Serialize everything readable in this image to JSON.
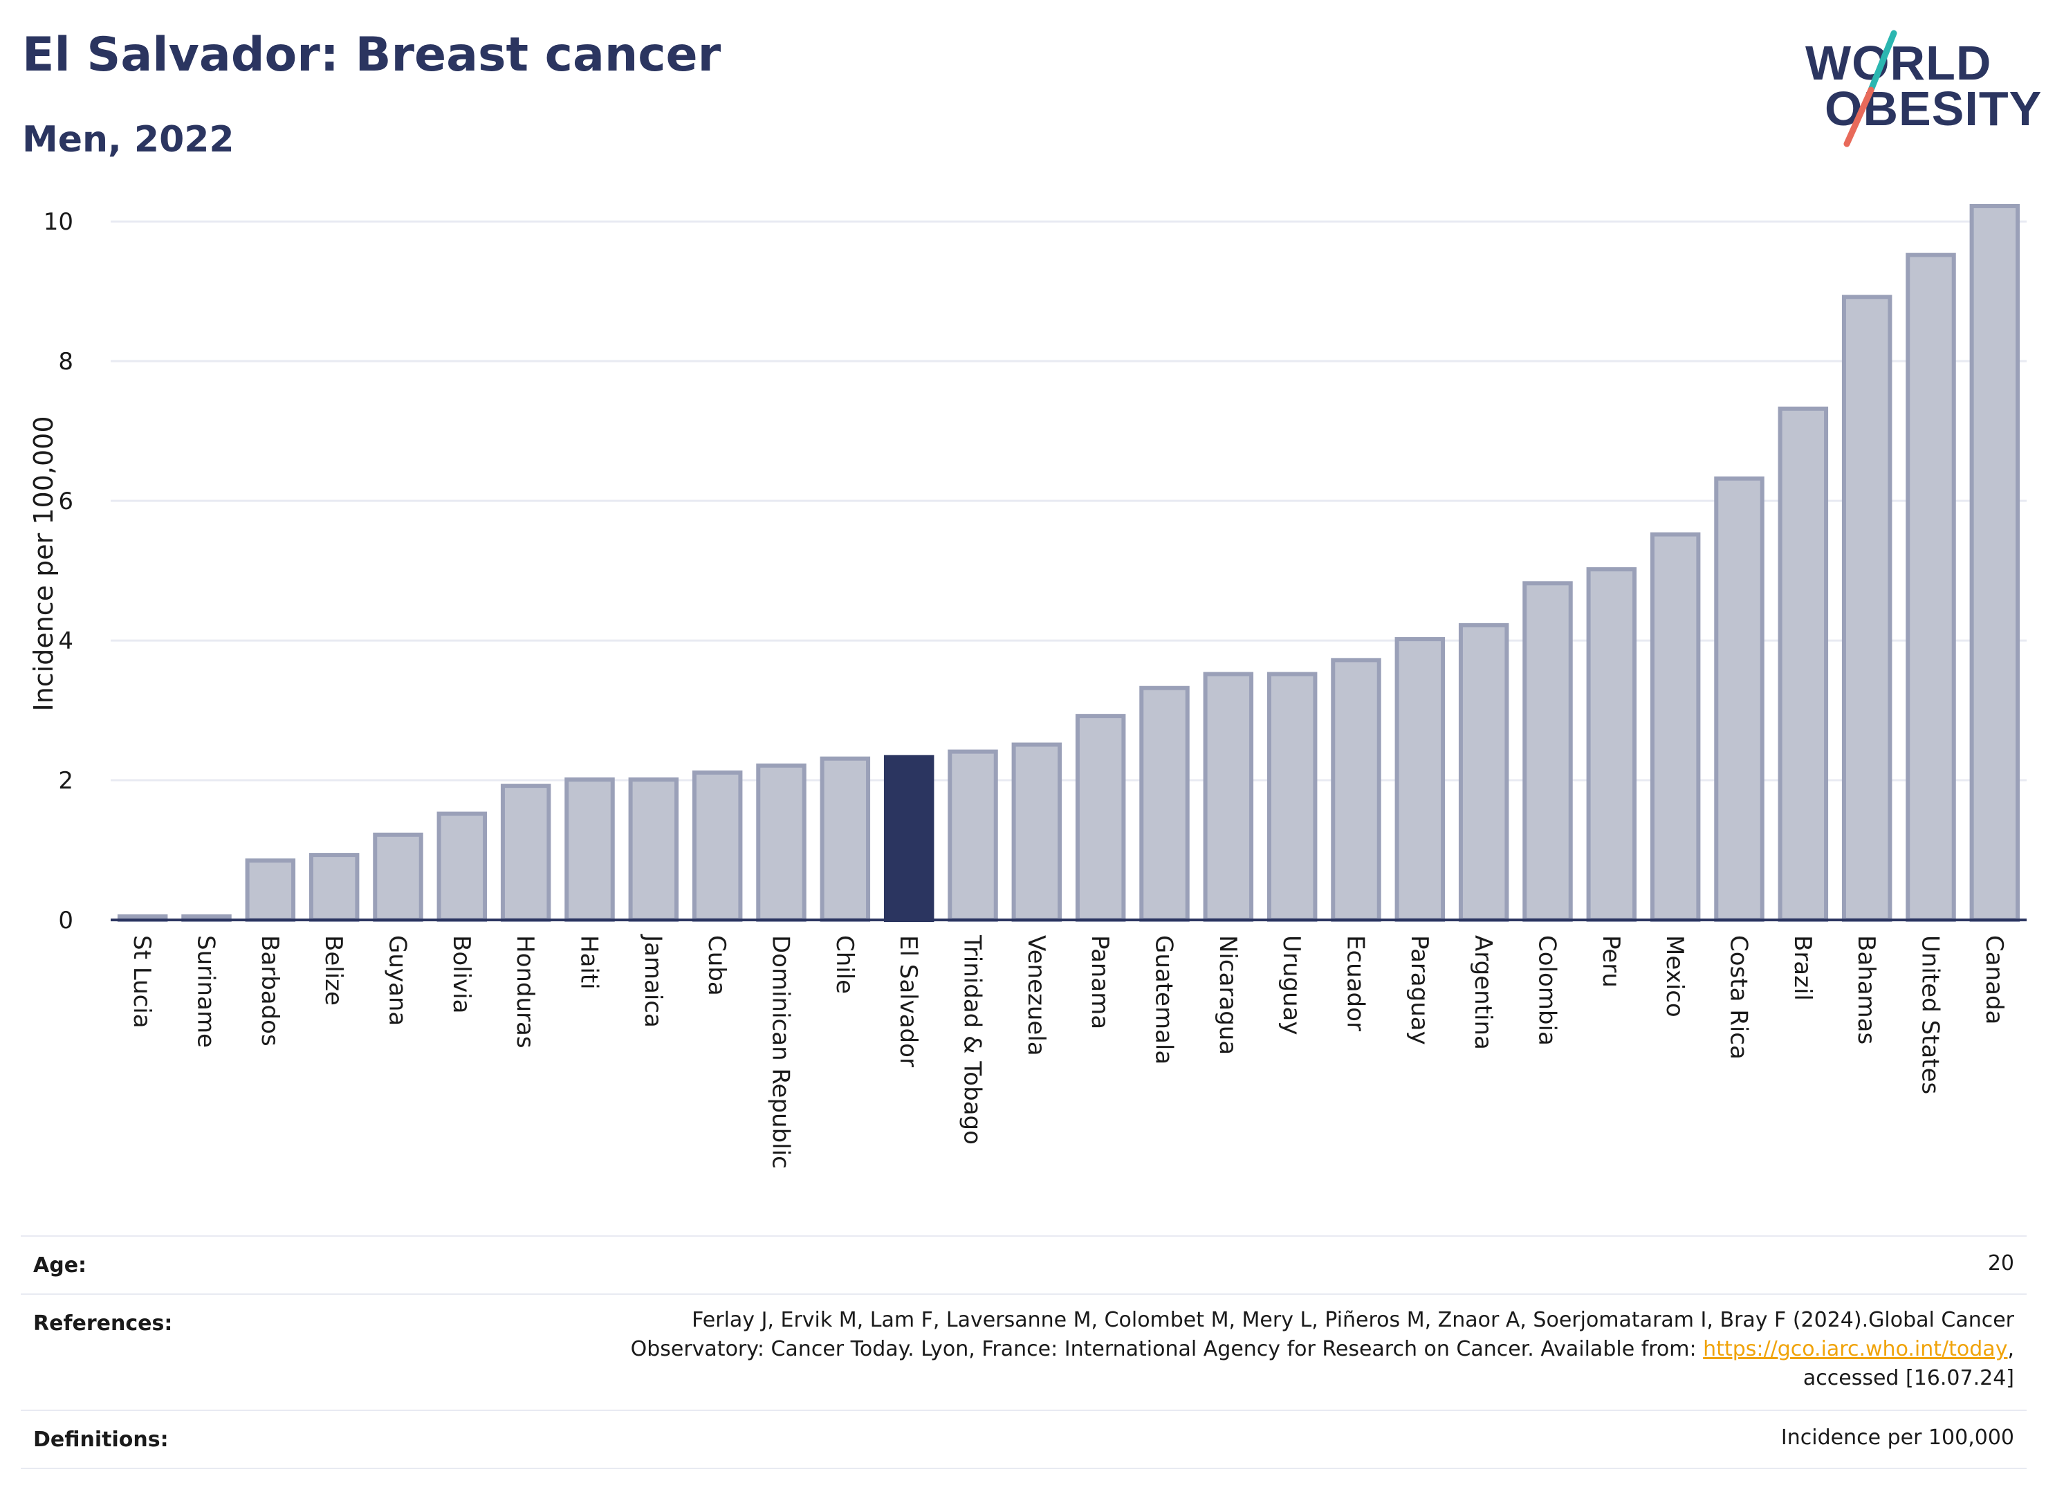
{
  "header": {
    "title": "El Salvador: Breast cancer",
    "subtitle": "Men, 2022"
  },
  "logo": {
    "line1": "WORLD",
    "line2": "OBESITY",
    "colors": {
      "text": "#2b3560",
      "slash_top": "#2bb6b0",
      "slash_bottom": "#e86a5a"
    }
  },
  "chart_data": {
    "type": "bar",
    "ylabel": "Incidence per 100,000",
    "ylim": [
      0,
      10.2
    ],
    "yticks": [
      0,
      2,
      4,
      6,
      8,
      10
    ],
    "grid": true,
    "highlight": "El Salvador",
    "colors": {
      "bar": "#bfc3d0",
      "bar_edge": "#9aa0b8",
      "highlight": "#2b3560",
      "grid": "#e8eaf2",
      "axis": "#2b3560"
    },
    "categories": [
      "St Lucia",
      "Suriname",
      "Barbados",
      "Belize",
      "Guyana",
      "Bolivia",
      "Honduras",
      "Haiti",
      "Jamaica",
      "Cuba",
      "Dominican Republic",
      "Chile",
      "El Salvador",
      "Trinidad & Tobago",
      "Venezuela",
      "Panama",
      "Guatemala",
      "Nicaragua",
      "Uruguay",
      "Ecuador",
      "Paraguay",
      "Argentina",
      "Colombia",
      "Peru",
      "Mexico",
      "Costa Rica",
      "Brazil",
      "Bahamas",
      "United States",
      "Canada"
    ],
    "values": [
      0.05,
      0.05,
      0.85,
      0.93,
      1.22,
      1.52,
      1.92,
      2.01,
      2.01,
      2.11,
      2.21,
      2.31,
      2.33,
      2.41,
      2.51,
      2.92,
      3.32,
      3.52,
      3.52,
      3.72,
      4.02,
      4.22,
      4.82,
      5.02,
      5.52,
      6.32,
      7.32,
      8.92,
      9.52,
      10.22
    ]
  },
  "meta": {
    "age_label": "Age:",
    "age_value": "20",
    "references_label": "References:",
    "references_line1": "Ferlay J, Ervik M, Lam F, Laversanne M, Colombet M, Mery L, Piñeros M, Znaor A, Soerjomataram I, Bray F (2024).Global Cancer",
    "references_line2_pre": "Observatory: Cancer Today. Lyon, France: International Agency for Research on Cancer. Available from: ",
    "references_link": "https://gco.iarc.who.int/today",
    "references_line2_post": ",",
    "references_line3": "accessed [16.07.24]",
    "definitions_label": "Definitions:",
    "definitions_value": "Incidence per 100,000"
  }
}
